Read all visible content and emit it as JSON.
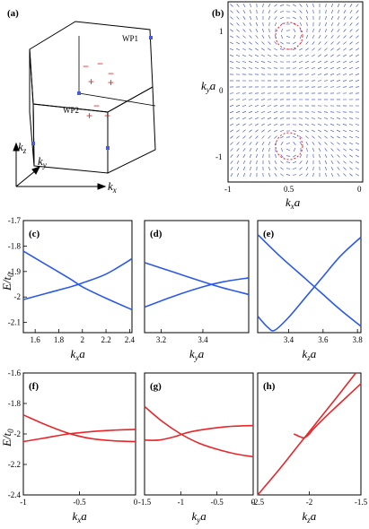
{
  "figure": {
    "panels": {
      "a": "(a)",
      "b": "(b)",
      "c": "(c)",
      "d": "(d)",
      "e": "(e)",
      "f": "(f)",
      "g": "(g)",
      "h": "(h)"
    },
    "prism": {
      "wp1": "WP1",
      "wp2": "WP2",
      "plus": "+",
      "minus": "−",
      "axes": {
        "kz": "k",
        "kz_sub": "z",
        "ky": "k",
        "ky_sub": "y",
        "kx": "k",
        "kx_sub": "x"
      }
    },
    "panel_b": {
      "ylabel": "k",
      "ylabel_sub": "y",
      "ylabel_tail": "a",
      "xlabel": "k",
      "xlabel_sub": "x",
      "xlabel_tail": "a",
      "yticks": [
        "1",
        "0",
        "-1"
      ],
      "xticks": [
        "-1",
        "0.5",
        "0"
      ]
    },
    "energy_label": {
      "main": "E/t",
      "sub": "0"
    }
  },
  "chart_data": [
    {
      "panel": "(c)",
      "type": "line",
      "xlabel": "k",
      "xlabel_sub": "x",
      "xlabel_tail": "a",
      "ylabel": "E/t0",
      "xlim": [
        1.5,
        2.42
      ],
      "ylim": [
        -2.14,
        -1.7
      ],
      "xticks": [
        "1.6",
        "1.8",
        "2",
        "2.2",
        "2.4"
      ],
      "yticks": [
        "-1.7",
        "-1.8",
        "-1.9",
        "-2",
        "-2.1"
      ],
      "color": "#2b59e8",
      "series": [
        {
          "x": [
            1.5,
            1.7,
            1.9,
            2.0,
            2.2,
            2.42
          ],
          "y": [
            -1.82,
            -1.875,
            -1.93,
            -1.96,
            -2.005,
            -2.05
          ]
        },
        {
          "x": [
            1.5,
            1.7,
            1.9,
            2.0,
            2.2,
            2.42
          ],
          "y": [
            -2.01,
            -1.985,
            -1.96,
            -1.945,
            -1.91,
            -1.85
          ]
        }
      ]
    },
    {
      "panel": "(d)",
      "type": "line",
      "xlabel": "k",
      "xlabel_sub": "y",
      "xlabel_tail": "a",
      "xlim": [
        3.12,
        3.62
      ],
      "ylim": [
        -2.14,
        -1.7
      ],
      "xticks": [
        "3.2",
        "3.4"
      ],
      "color": "#2b59e8",
      "series": [
        {
          "x": [
            3.12,
            3.25,
            3.4,
            3.5,
            3.62
          ],
          "y": [
            -1.865,
            -1.9,
            -1.94,
            -1.965,
            -1.99
          ]
        },
        {
          "x": [
            3.12,
            3.25,
            3.4,
            3.5,
            3.62
          ],
          "y": [
            -2.04,
            -2.0,
            -1.96,
            -1.94,
            -1.925
          ]
        }
      ]
    },
    {
      "panel": "(e)",
      "type": "line",
      "xlabel": "k",
      "xlabel_sub": "z",
      "xlabel_tail": "a",
      "xlim": [
        3.22,
        3.82
      ],
      "ylim": [
        -2.14,
        -1.7
      ],
      "xticks": [
        "3.4",
        "3.6",
        "3.8"
      ],
      "color": "#2b59e8",
      "series": [
        {
          "x": [
            3.22,
            3.35,
            3.5,
            3.6,
            3.7,
            3.82
          ],
          "y": [
            -1.755,
            -1.84,
            -1.93,
            -1.99,
            -2.05,
            -2.115
          ]
        },
        {
          "x": [
            3.22,
            3.28,
            3.32,
            3.4,
            3.5,
            3.6,
            3.7,
            3.82
          ],
          "y": [
            -2.075,
            -2.12,
            -2.13,
            -2.08,
            -2.0,
            -1.92,
            -1.84,
            -1.765
          ]
        }
      ]
    },
    {
      "panel": "(f)",
      "type": "line",
      "xlabel": "k",
      "xlabel_sub": "x",
      "xlabel_tail": "a",
      "ylabel": "E/t0",
      "xlim": [
        -1,
        0
      ],
      "ylim": [
        -2.4,
        -1.6
      ],
      "xticks": [
        "-1",
        "-0.5",
        "0"
      ],
      "yticks": [
        "-1.6",
        "-1.8",
        "-2",
        "-2.2",
        "-2.4"
      ],
      "color": "#e8262a",
      "series": [
        {
          "x": [
            -1,
            -0.8,
            -0.6,
            -0.4,
            -0.2,
            0
          ],
          "y": [
            -1.875,
            -1.94,
            -1.995,
            -2.03,
            -2.045,
            -2.05
          ]
        },
        {
          "x": [
            -1,
            -0.8,
            -0.6,
            -0.4,
            -0.2,
            0
          ],
          "y": [
            -2.05,
            -2.025,
            -2.0,
            -1.985,
            -1.975,
            -1.97
          ]
        }
      ]
    },
    {
      "panel": "(g)",
      "type": "line",
      "xlabel": "k",
      "xlabel_sub": "y",
      "xlabel_tail": "a",
      "xlim": [
        -1.5,
        0
      ],
      "ylim": [
        -2.4,
        -1.6
      ],
      "xticks": [
        "-1.5",
        "-1",
        "-0.5",
        "0"
      ],
      "color": "#e8262a",
      "series": [
        {
          "x": [
            -1.5,
            -1.25,
            -1.0,
            -0.75,
            -0.5,
            -0.25,
            0
          ],
          "y": [
            -1.82,
            -1.92,
            -2.0,
            -2.06,
            -2.1,
            -2.13,
            -2.15
          ]
        },
        {
          "x": [
            -1.5,
            -1.3,
            -1.1,
            -0.9,
            -0.6,
            -0.3,
            0
          ],
          "y": [
            -2.04,
            -2.04,
            -2.02,
            -1.99,
            -1.965,
            -1.95,
            -1.945
          ]
        }
      ]
    },
    {
      "panel": "(h)",
      "type": "line",
      "xlabel": "k",
      "xlabel_sub": "z",
      "xlabel_tail": "a",
      "xlim": [
        -2.5,
        -1.5
      ],
      "ylim": [
        -2.4,
        -1.6
      ],
      "xticks": [
        "-2.5",
        "-2",
        "-1.5"
      ],
      "color": "#e8262a",
      "series": [
        {
          "x": [
            -2.5,
            -2.3,
            -2.1,
            -1.9,
            -1.7,
            -1.55
          ],
          "y": [
            -2.4,
            -2.24,
            -2.07,
            -1.9,
            -1.73,
            -1.6
          ]
        },
        {
          "x": [
            -2.15,
            -2.1,
            -2.05,
            -2.0,
            -1.95,
            -1.8,
            -1.65,
            -1.5
          ],
          "y": [
            -2.0,
            -2.015,
            -2.025,
            -2.0,
            -1.96,
            -1.86,
            -1.765,
            -1.67
          ]
        }
      ]
    }
  ]
}
